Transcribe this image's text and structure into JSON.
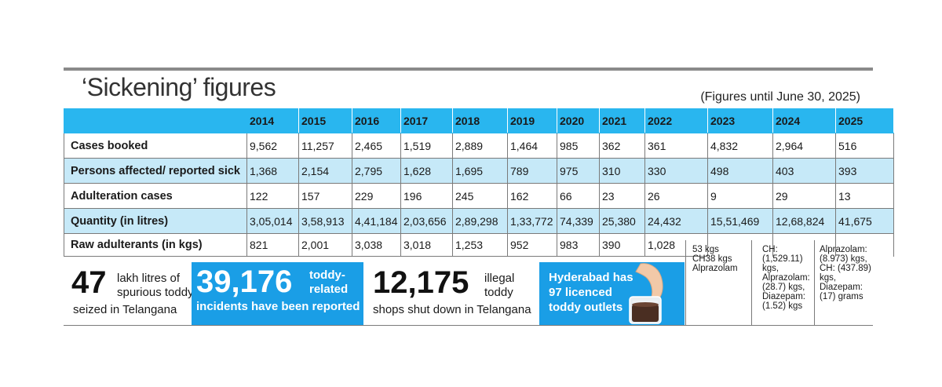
{
  "title": "‘Sickening’ figures",
  "note": "(Figures until June 30, 2025)",
  "table": {
    "years": [
      "2014",
      "2015",
      "2016",
      "2017",
      "2018",
      "2019",
      "2020",
      "2021",
      "2022",
      "2023",
      "2024",
      "2025"
    ],
    "rows": [
      {
        "label": "Cases booked",
        "values": [
          "9,562",
          "11,257",
          "2,465",
          "1,519",
          "2,889",
          "1,464",
          "985",
          "362",
          "361",
          "4,832",
          "2,964",
          "516"
        ]
      },
      {
        "label": "Persons affected/ reported sick",
        "values": [
          "1,368",
          "2,154",
          "2,795",
          "1,628",
          "1,695",
          "789",
          "975",
          "310",
          "330",
          "498",
          "403",
          "393"
        ]
      },
      {
        "label": "Adulteration cases",
        "values": [
          "122",
          "157",
          "229",
          "196",
          "245",
          "162",
          "66",
          "23",
          "26",
          "9",
          "29",
          "13"
        ]
      },
      {
        "label": "Quantity (in litres)",
        "values": [
          "3,05,014",
          "3,58,913",
          "4,41,184",
          "2,03,656",
          "2,89,298",
          "1,33,772",
          "74,339",
          "25,380",
          "24,432",
          "15,51,469",
          "12,68,824",
          "41,675"
        ]
      },
      {
        "label": "Raw adulterants (in kgs)",
        "values": [
          "821",
          "2,001",
          "3,038",
          "3,018",
          "1,253",
          "952",
          "983",
          "390",
          "1,028"
        ]
      }
    ],
    "raw_2023": "53 kgs\nCH38 kgs\nAlprazolam",
    "raw_2024": "CH:\n(1,529.11)\nkgs,\nAlprazolam:\n(28.7) kgs,\nDiazepam:\n(1.52) kgs",
    "raw_2025": "Alprazolam:\n(8.973) kgs,\nCH: (437.89)\nkgs,\nDiazepam:\n(17) grams"
  },
  "stats": {
    "s1_big": "47",
    "s1_line1": "lakh litres of",
    "s1_line2": "spurious toddy",
    "s1_line3": "seized in Telangana",
    "s2_big": "39,176",
    "s2_line1": "toddy-",
    "s2_line2": "related",
    "s2_line3": "incidents have been reported",
    "s3_big": "12,175",
    "s3_line1": "illegal",
    "s3_line2": "toddy",
    "s3_line3": "shops shut down in Telangana",
    "s4_line1": "Hyderabad has",
    "s4_line2": "97 licenced",
    "s4_line3": "toddy outlets"
  },
  "colors": {
    "header": "#29b6ef",
    "alt_row": "#c6e9f8",
    "panel": "#1a9ee6"
  }
}
